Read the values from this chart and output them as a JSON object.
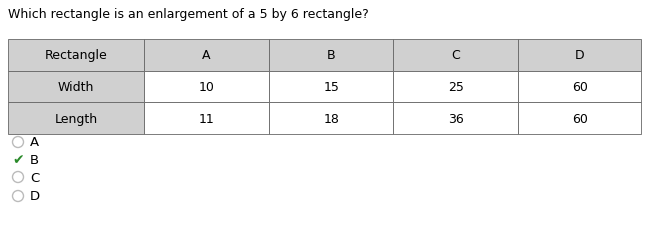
{
  "question": "Which rectangle is an enlargement of a 5 by 6 rectangle?",
  "table": {
    "headers": [
      "Rectangle",
      "A",
      "B",
      "C",
      "D"
    ],
    "rows": [
      [
        "Width",
        "10",
        "15",
        "25",
        "60"
      ],
      [
        "Length",
        "11",
        "18",
        "36",
        "60"
      ]
    ]
  },
  "choices": [
    "A",
    "B",
    "C",
    "D"
  ],
  "correct": "B",
  "header_bg": "#d0d0d0",
  "cell_bg": "#ffffff",
  "border_color": "#666666",
  "question_fontsize": 9.0,
  "table_fontsize": 9.0,
  "choice_fontsize": 9.5,
  "check_color": "#2a8a2a",
  "circle_color": "#bbbbbb",
  "fig_w": 6.49,
  "fig_h": 2.3,
  "dpi": 100
}
